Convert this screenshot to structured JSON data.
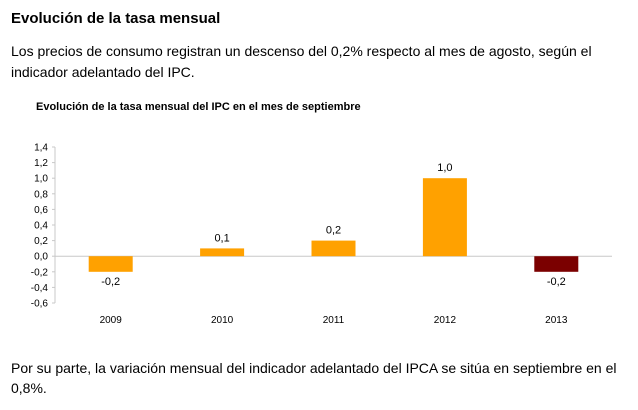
{
  "header": {
    "title": "Evolución de la tasa mensual",
    "intro": "Los precios de consumo registran un descenso del 0,2% respecto al mes de agosto, según el indicador adelantado del IPC."
  },
  "footer": {
    "text": "Por su parte, la variación mensual del indicador adelantado del IPCA se sitúa en septiembre en el 0,8%."
  },
  "chart_data": {
    "type": "bar",
    "title": "Evolución de la tasa mensual del IPC en el mes de septiembre",
    "categories": [
      "2009",
      "2010",
      "2011",
      "2012",
      "2013"
    ],
    "values": [
      -0.2,
      0.1,
      0.2,
      1.0,
      -0.2
    ],
    "value_labels": [
      "-0,2",
      "0,1",
      "0,2",
      "1,0",
      "-0,2"
    ],
    "colors": [
      "#FFA100",
      "#FFA100",
      "#FFA100",
      "#FFA100",
      "#7B0000"
    ],
    "yticks": [
      1.4,
      1.2,
      1.0,
      0.8,
      0.6,
      0.4,
      0.2,
      0.0,
      -0.2,
      -0.4,
      -0.6
    ],
    "ytick_labels": [
      "1,4",
      "1,2",
      "1,0",
      "0,8",
      "0,6",
      "0,4",
      "0,2",
      "0,0",
      "-0,2",
      "-0,4",
      "-0,6"
    ],
    "ylim": [
      -0.6,
      1.4
    ],
    "xlabel": "",
    "ylabel": "",
    "grid": false,
    "legend": false
  }
}
